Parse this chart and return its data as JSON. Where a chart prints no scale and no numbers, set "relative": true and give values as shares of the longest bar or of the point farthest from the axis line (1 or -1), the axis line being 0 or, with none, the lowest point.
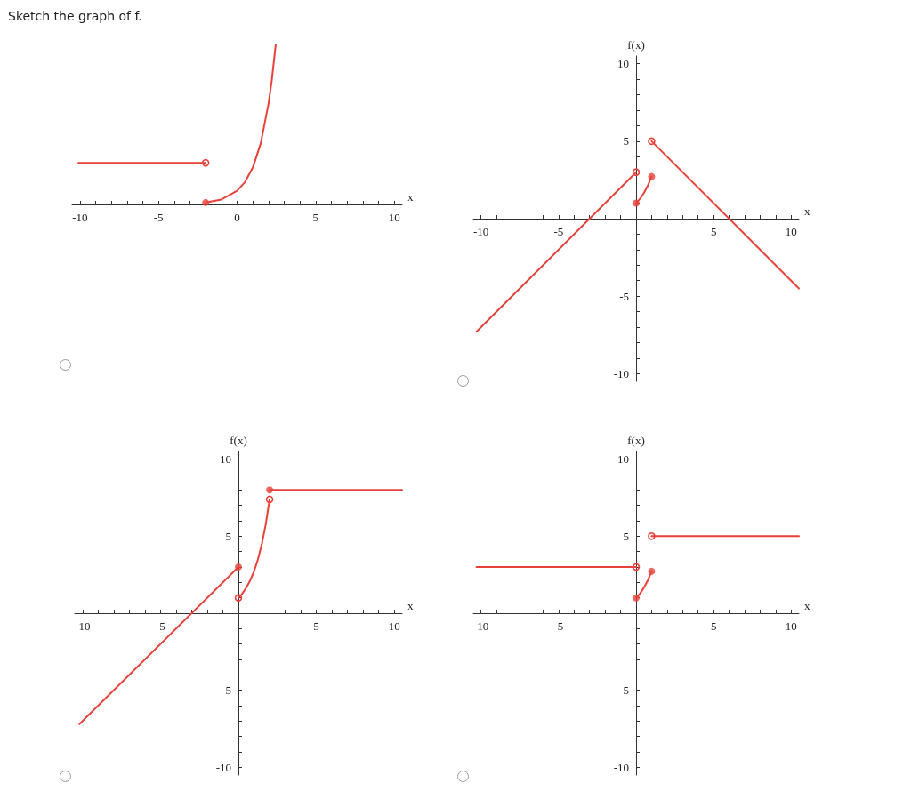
{
  "chart_data": [
    {
      "type": "line",
      "title": "Sketch the graph of f.",
      "xlabel": "x",
      "relative": true,
      "xlim": [
        -10.5,
        10.5
      ],
      "xticks": [
        -10,
        {
          "value": -9,
          "label": null
        },
        {
          "value": -8,
          "label": null
        },
        {
          "value": -7,
          "label": null
        },
        {
          "value": -6,
          "label": null
        },
        -5,
        {
          "value": -4,
          "label": null
        },
        {
          "value": -3,
          "label": null
        },
        {
          "value": -2,
          "label": null
        },
        {
          "value": -1,
          "label": null
        },
        0,
        {
          "value": 1,
          "label": null
        },
        {
          "value": 2,
          "label": null
        },
        {
          "value": 3,
          "label": null
        },
        {
          "value": 4,
          "label": null
        },
        5,
        {
          "value": 6,
          "label": null
        },
        {
          "value": 7,
          "label": null
        },
        {
          "value": 8,
          "label": null
        },
        {
          "value": 9,
          "label": null
        },
        10
      ],
      "grid": false,
      "line_style": "solid",
      "series": [
        {
          "type": "line",
          "marker": "none",
          "color": "#e8413a",
          "x": [
            -10.1,
            -2
          ],
          "values": [
            0.26,
            0.26
          ]
        },
        {
          "type": "line",
          "marker": "none",
          "color": "#e8413a",
          "x": [
            -2,
            -1,
            0,
            0.5,
            1,
            1.5,
            2,
            2.2,
            2.46
          ],
          "values": [
            0.012,
            0.031,
            0.085,
            0.14,
            0.23,
            0.38,
            0.63,
            0.77,
            1
          ]
        },
        {
          "type": "scatter",
          "marker": "open_circle",
          "color": "#e8413a",
          "x": [
            -2
          ],
          "values": [
            0.26
          ]
        },
        {
          "type": "scatter",
          "marker": "circle",
          "color": "#e8413a",
          "x": [
            -2
          ],
          "values": [
            0.012
          ]
        }
      ]
    },
    {
      "type": "line",
      "xlabel": "x",
      "ylabel": "f(x)",
      "xlim": [
        -10.5,
        10.5
      ],
      "ylim": [
        -10.5,
        10.5
      ],
      "xticks": [
        -10,
        {
          "value": -9,
          "label": null
        },
        {
          "value": -8,
          "label": null
        },
        {
          "value": -7,
          "label": null
        },
        {
          "value": -6,
          "label": null
        },
        -5,
        {
          "value": -4,
          "label": null
        },
        {
          "value": -3,
          "label": null
        },
        {
          "value": -2,
          "label": null
        },
        {
          "value": -1,
          "label": null
        },
        {
          "value": 1,
          "label": null
        },
        {
          "value": 2,
          "label": null
        },
        {
          "value": 3,
          "label": null
        },
        {
          "value": 4,
          "label": null
        },
        5,
        {
          "value": 6,
          "label": null
        },
        {
          "value": 7,
          "label": null
        },
        {
          "value": 8,
          "label": null
        },
        {
          "value": 9,
          "label": null
        },
        10
      ],
      "yticks": [
        -10,
        {
          "value": -9,
          "label": null
        },
        {
          "value": -8,
          "label": null
        },
        {
          "value": -7,
          "label": null
        },
        {
          "value": -6,
          "label": null
        },
        -5,
        {
          "value": -4,
          "label": null
        },
        {
          "value": -3,
          "label": null
        },
        {
          "value": -2,
          "label": null
        },
        {
          "value": -1,
          "label": null
        },
        {
          "value": 1,
          "label": null
        },
        {
          "value": 2,
          "label": null
        },
        {
          "value": 3,
          "label": null
        },
        {
          "value": 4,
          "label": null
        },
        5,
        {
          "value": 6,
          "label": null
        },
        {
          "value": 7,
          "label": null
        },
        {
          "value": 8,
          "label": null
        },
        {
          "value": 9,
          "label": null
        },
        10
      ],
      "grid": false,
      "line_style": "solid",
      "series": [
        {
          "type": "line",
          "marker": "none",
          "color": "#e8413a",
          "x": [
            -10.3,
            0
          ],
          "values": [
            -7.3,
            3
          ]
        },
        {
          "type": "line",
          "marker": "none",
          "color": "#e8413a",
          "x": [
            0,
            0.25,
            0.5,
            0.75,
            1
          ],
          "values": [
            1,
            1.28,
            1.65,
            2.12,
            2.72
          ]
        },
        {
          "type": "line",
          "marker": "none",
          "color": "#e8413a",
          "x": [
            1,
            10.5
          ],
          "values": [
            5,
            -4.5
          ]
        },
        {
          "type": "scatter",
          "marker": "open_circle",
          "color": "#e8413a",
          "x": [
            0,
            1
          ],
          "values": [
            3,
            5
          ]
        },
        {
          "type": "scatter",
          "marker": "circle",
          "color": "#e8413a",
          "x": [
            0,
            1
          ],
          "values": [
            1,
            2.72
          ]
        }
      ]
    },
    {
      "type": "line",
      "xlabel": "x",
      "ylabel": "f(x)",
      "xlim": [
        -10.5,
        10.5
      ],
      "ylim": [
        -10.5,
        10.5
      ],
      "xticks": [
        -10,
        {
          "value": -9,
          "label": null
        },
        {
          "value": -8,
          "label": null
        },
        {
          "value": -7,
          "label": null
        },
        {
          "value": -6,
          "label": null
        },
        -5,
        {
          "value": -4,
          "label": null
        },
        {
          "value": -3,
          "label": null
        },
        {
          "value": -2,
          "label": null
        },
        {
          "value": -1,
          "label": null
        },
        {
          "value": 1,
          "label": null
        },
        {
          "value": 2,
          "label": null
        },
        {
          "value": 3,
          "label": null
        },
        {
          "value": 4,
          "label": null
        },
        5,
        {
          "value": 6,
          "label": null
        },
        {
          "value": 7,
          "label": null
        },
        {
          "value": 8,
          "label": null
        },
        {
          "value": 9,
          "label": null
        },
        10
      ],
      "yticks": [
        -10,
        {
          "value": -9,
          "label": null
        },
        {
          "value": -8,
          "label": null
        },
        {
          "value": -7,
          "label": null
        },
        {
          "value": -6,
          "label": null
        },
        -5,
        {
          "value": -4,
          "label": null
        },
        {
          "value": -3,
          "label": null
        },
        {
          "value": -2,
          "label": null
        },
        {
          "value": -1,
          "label": null
        },
        {
          "value": 1,
          "label": null
        },
        {
          "value": 2,
          "label": null
        },
        {
          "value": 3,
          "label": null
        },
        {
          "value": 4,
          "label": null
        },
        5,
        {
          "value": 6,
          "label": null
        },
        {
          "value": 7,
          "label": null
        },
        {
          "value": 8,
          "label": null
        },
        {
          "value": 9,
          "label": null
        },
        10
      ],
      "grid": false,
      "line_style": "solid",
      "series": [
        {
          "type": "line",
          "marker": "none",
          "color": "#e8413a",
          "x": [
            -10.2,
            0
          ],
          "values": [
            -7.2,
            3
          ]
        },
        {
          "type": "line",
          "marker": "none",
          "color": "#e8413a",
          "x": [
            0,
            0.25,
            0.5,
            0.75,
            1,
            1.25,
            1.5,
            1.75,
            2
          ],
          "values": [
            1,
            1.28,
            1.65,
            2.12,
            2.72,
            3.49,
            4.48,
            5.75,
            7.39
          ]
        },
        {
          "type": "line",
          "marker": "none",
          "color": "#e8413a",
          "x": [
            2,
            10.5
          ],
          "values": [
            8,
            8
          ]
        },
        {
          "type": "scatter",
          "marker": "open_circle",
          "color": "#e8413a",
          "x": [
            0,
            2
          ],
          "values": [
            1,
            7.39
          ]
        },
        {
          "type": "scatter",
          "marker": "circle",
          "color": "#e8413a",
          "x": [
            0,
            2
          ],
          "values": [
            3,
            8
          ]
        }
      ]
    },
    {
      "type": "line",
      "xlabel": "x",
      "ylabel": "f(x)",
      "xlim": [
        -10.5,
        10.5
      ],
      "ylim": [
        -10.5,
        10.5
      ],
      "xticks": [
        -10,
        {
          "value": -9,
          "label": null
        },
        {
          "value": -8,
          "label": null
        },
        {
          "value": -7,
          "label": null
        },
        {
          "value": -6,
          "label": null
        },
        -5,
        {
          "value": -4,
          "label": null
        },
        {
          "value": -3,
          "label": null
        },
        {
          "value": -2,
          "label": null
        },
        {
          "value": -1,
          "label": null
        },
        {
          "value": 1,
          "label": null
        },
        {
          "value": 2,
          "label": null
        },
        {
          "value": 3,
          "label": null
        },
        {
          "value": 4,
          "label": null
        },
        5,
        {
          "value": 6,
          "label": null
        },
        {
          "value": 7,
          "label": null
        },
        {
          "value": 8,
          "label": null
        },
        {
          "value": 9,
          "label": null
        },
        10
      ],
      "yticks": [
        -10,
        {
          "value": -9,
          "label": null
        },
        {
          "value": -8,
          "label": null
        },
        {
          "value": -7,
          "label": null
        },
        {
          "value": -6,
          "label": null
        },
        -5,
        {
          "value": -4,
          "label": null
        },
        {
          "value": -3,
          "label": null
        },
        {
          "value": -2,
          "label": null
        },
        {
          "value": -1,
          "label": null
        },
        {
          "value": 1,
          "label": null
        },
        {
          "value": 2,
          "label": null
        },
        {
          "value": 3,
          "label": null
        },
        {
          "value": 4,
          "label": null
        },
        5,
        {
          "value": 6,
          "label": null
        },
        {
          "value": 7,
          "label": null
        },
        {
          "value": 8,
          "label": null
        },
        {
          "value": 9,
          "label": null
        },
        10
      ],
      "grid": false,
      "line_style": "solid",
      "series": [
        {
          "type": "line",
          "marker": "none",
          "color": "#e8413a",
          "x": [
            -10.3,
            0
          ],
          "values": [
            3,
            3
          ]
        },
        {
          "type": "line",
          "marker": "none",
          "color": "#e8413a",
          "x": [
            0,
            0.25,
            0.5,
            0.75,
            1
          ],
          "values": [
            1,
            1.28,
            1.65,
            2.12,
            2.72
          ]
        },
        {
          "type": "line",
          "marker": "none",
          "color": "#e8413a",
          "x": [
            1,
            10.5
          ],
          "values": [
            5,
            5
          ]
        },
        {
          "type": "scatter",
          "marker": "open_circle",
          "color": "#e8413a",
          "x": [
            0,
            1
          ],
          "values": [
            3,
            5
          ]
        },
        {
          "type": "scatter",
          "marker": "circle",
          "color": "#e8413a",
          "x": [
            0,
            1
          ],
          "values": [
            1,
            2.72
          ]
        }
      ]
    }
  ]
}
